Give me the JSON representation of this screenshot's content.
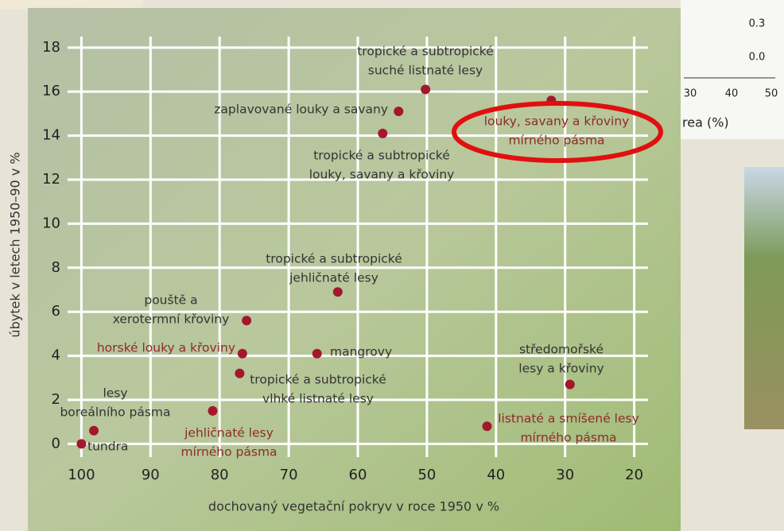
{
  "chart_data": {
    "type": "scatter",
    "x_label": "dochovaný vegetační pokryv v roce 1950 v %",
    "y_label": "úbytek v letech 1950–90 v %",
    "x": [
      100,
      98.2,
      81,
      76.7,
      76.1,
      77.1,
      65.9,
      62.9,
      54.1,
      56.4,
      50.2,
      32,
      29.3,
      41.3
    ],
    "values": [
      0,
      0.6,
      1.5,
      4.1,
      5.6,
      3.2,
      4.1,
      6.9,
      15.1,
      14.1,
      16.1,
      15.6,
      2.7,
      0.8
    ],
    "labels": [
      [
        "tundra"
      ],
      [
        "lesy",
        "boreálního pásma"
      ],
      [
        "jehličnaté lesy",
        "mírného pásma"
      ],
      [
        "horské louky a křoviny"
      ],
      [
        "pouště a",
        "xerotermní křoviny"
      ],
      [
        "tropické a subtropické",
        "vlhké listnaté lesy"
      ],
      [
        "mangrovy"
      ],
      [
        "tropické a subtropické",
        "jehličnaté lesy"
      ],
      [
        "zaplavované louky a savany"
      ],
      [
        "tropické a subtropické",
        "louky, savany a křoviny"
      ],
      [
        "tropické a subtropické",
        "suché listnaté lesy"
      ],
      [
        "louky, savany a křoviny",
        "mírného pásma"
      ],
      [
        "středomořské",
        "lesy a křoviny"
      ],
      [
        "listnaté a smíšené lesy",
        "mírného pásma"
      ]
    ],
    "label_colors": [
      "#333333",
      "#333333",
      "#8e2a2a",
      "#8e2a2a",
      "#333333",
      "#333333",
      "#333333",
      "#333333",
      "#333333",
      "#333333",
      "#333333",
      "#8e2a2a",
      "#333333",
      "#8e2a2a"
    ],
    "color": "#a3182c",
    "xlim": [
      102,
      18
    ],
    "xticks": [
      100,
      90,
      80,
      70,
      60,
      50,
      40,
      30,
      20
    ],
    "ylim": [
      -0.6,
      18.5
    ],
    "yticks": [
      0,
      2,
      4,
      6,
      8,
      10,
      12,
      14,
      16,
      18
    ],
    "grid": true
  },
  "background": {
    "texts": [
      "0.3",
      "0.0",
      "30",
      "40",
      "50",
      "rea (%)"
    ]
  }
}
